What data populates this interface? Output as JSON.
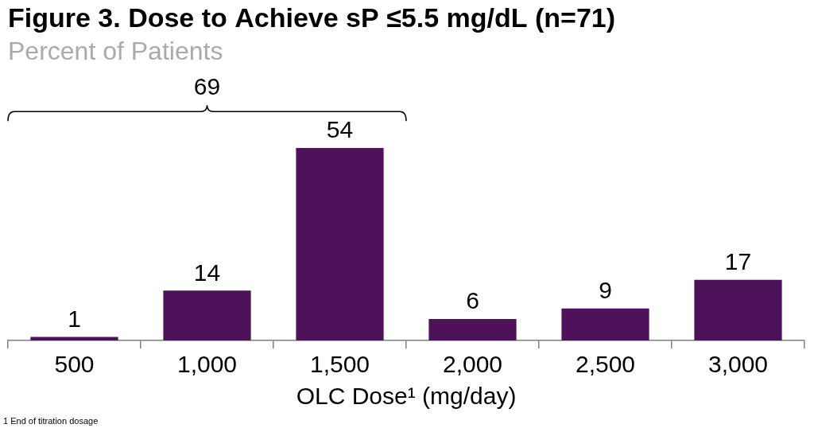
{
  "chart_data": {
    "type": "bar",
    "title": "Figure 3. Dose to Achieve sP ≤5.5 mg/dL (n=71)",
    "subtitle": "Percent of Patients",
    "x_label": "OLC Dose¹ (mg/day)",
    "footnote": "1 End of titration dosage",
    "categories": [
      "500",
      "1,000",
      "1,500",
      "2,000",
      "2,500",
      "3,000"
    ],
    "values": [
      1,
      14,
      54,
      6,
      9,
      17
    ],
    "color": "#4d1259",
    "ylim": [
      0,
      60
    ],
    "grid": false,
    "data_labels": true,
    "tick_labels": "x",
    "annotations": [
      {
        "value": 69,
        "from": "500",
        "to": "1,500"
      }
    ]
  }
}
